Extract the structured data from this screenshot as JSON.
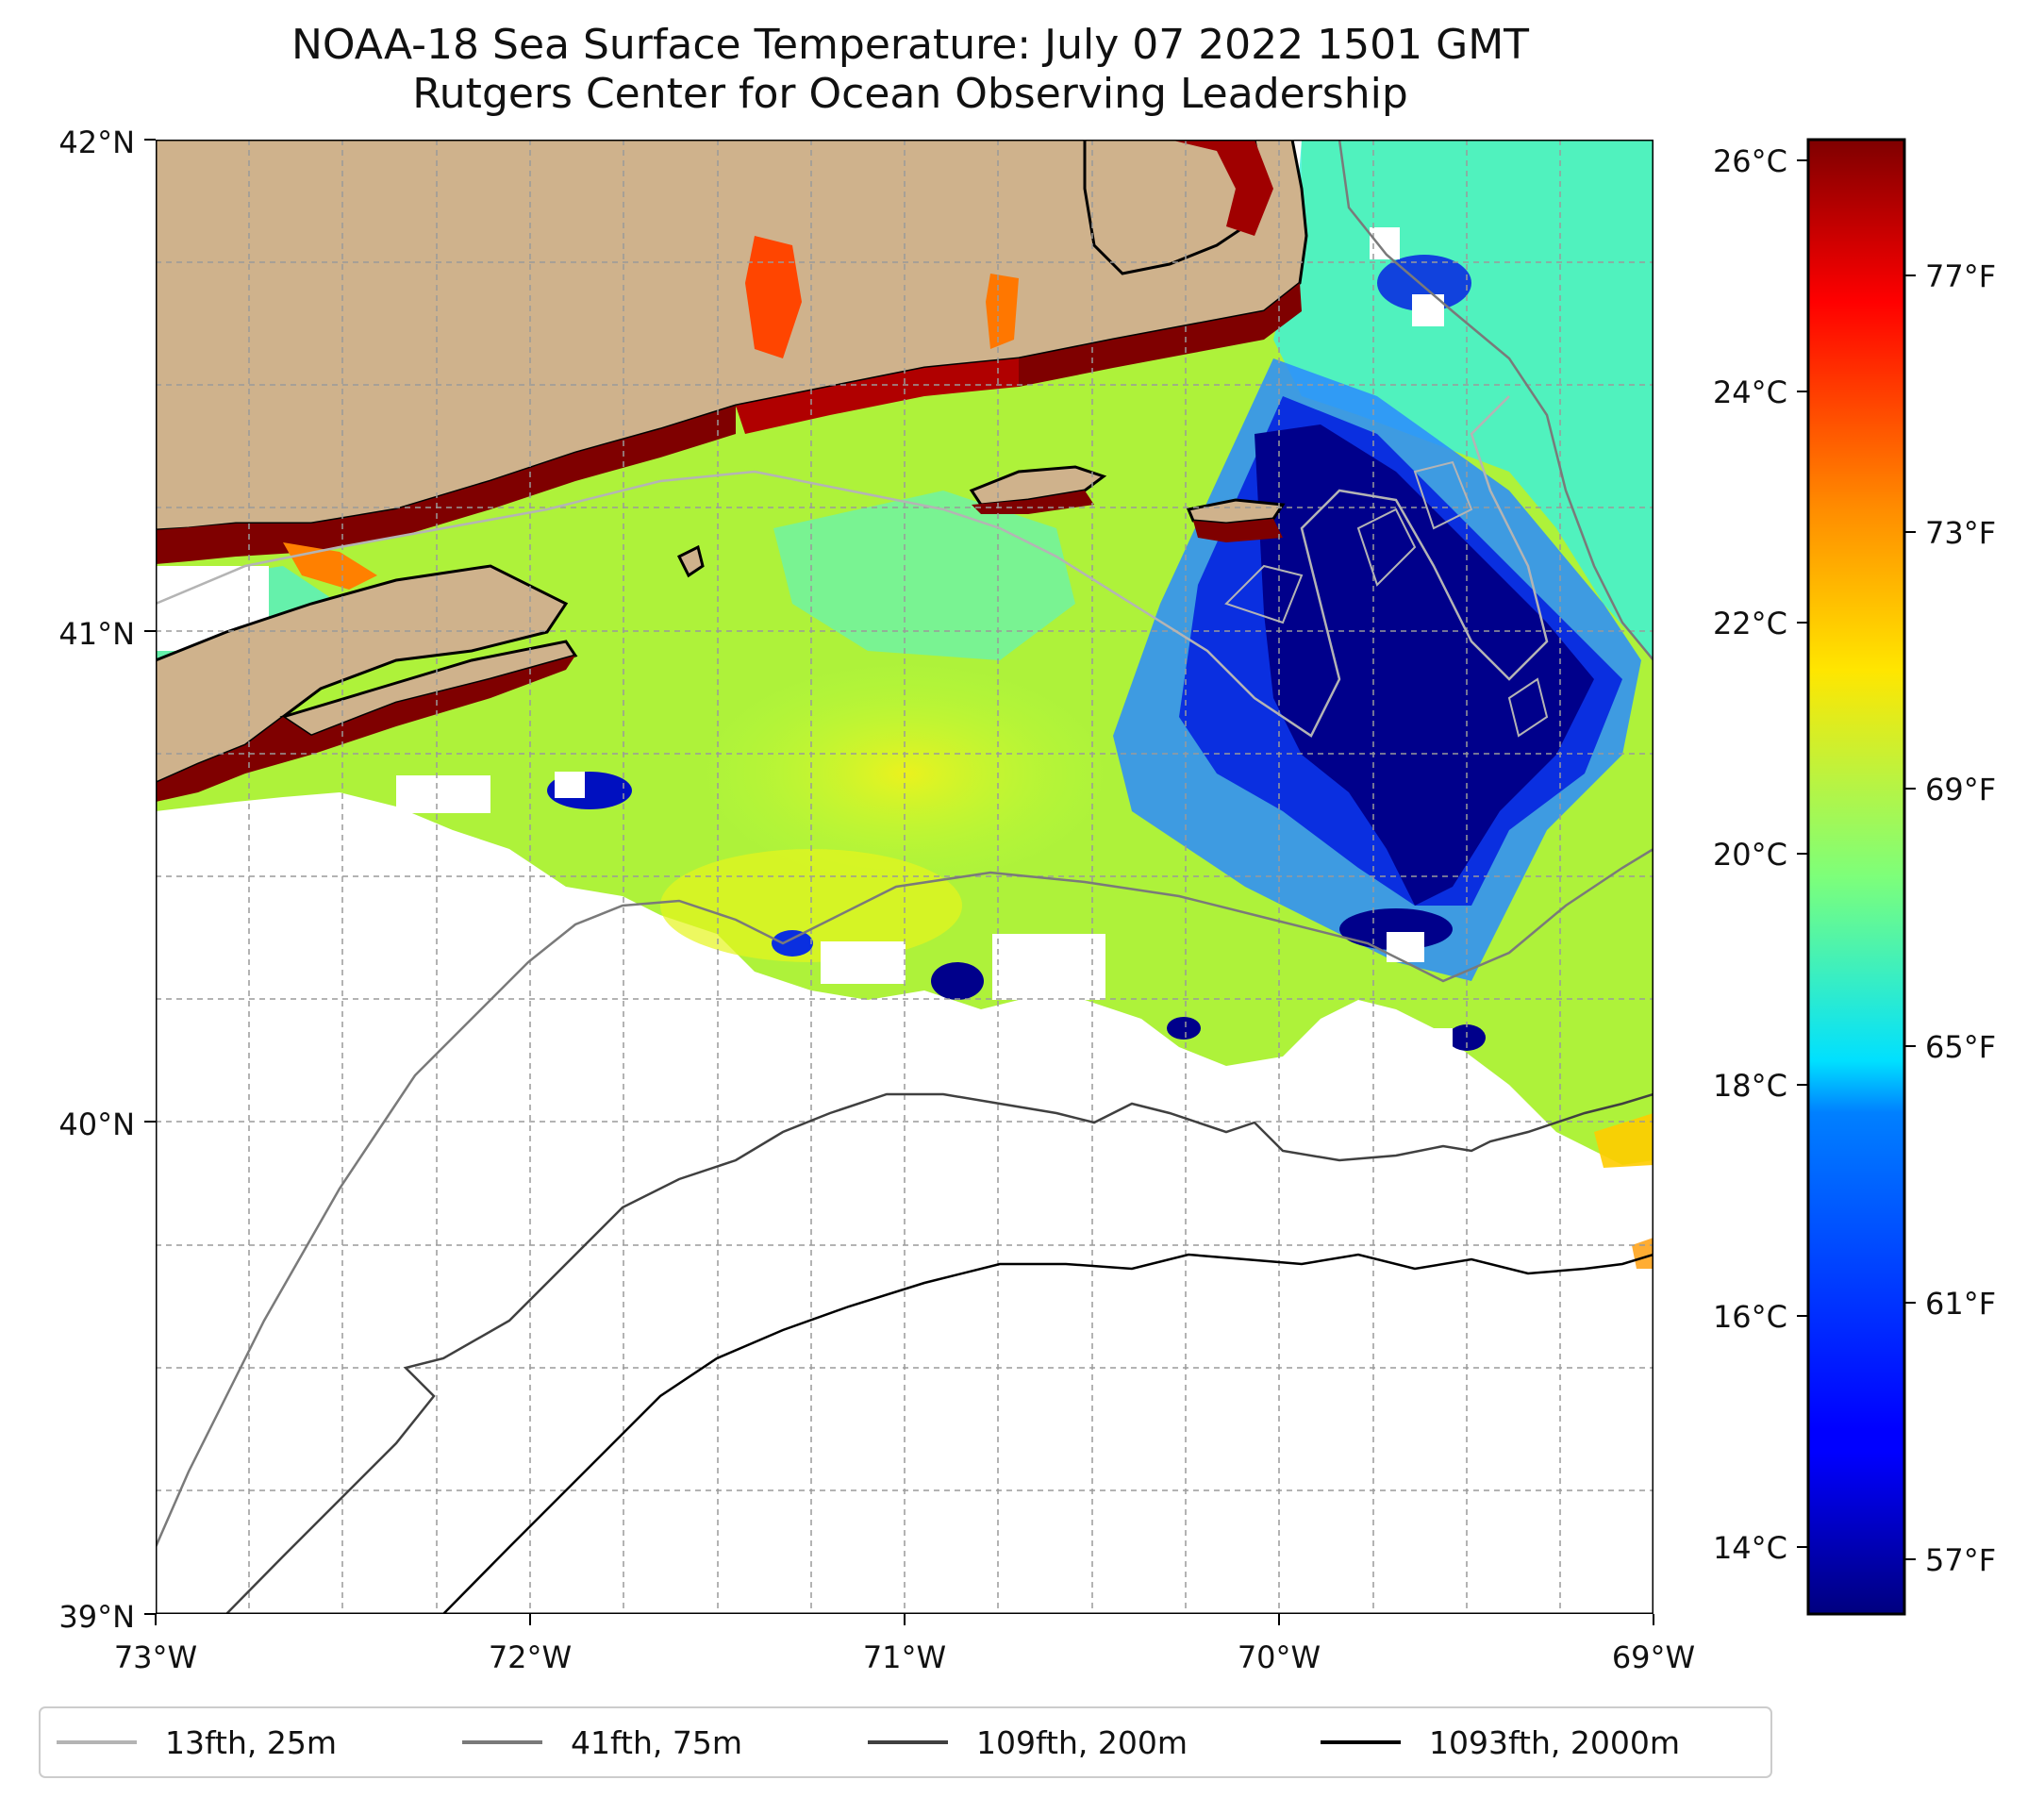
{
  "title": {
    "line1": "NOAA-18 Sea Surface Temperature: July 07 2022 1501 GMT",
    "line2": "Rutgers Center for Ocean Observing Leadership"
  },
  "axes": {
    "lat_ticks": [
      "42°N",
      "41°N",
      "40°N",
      "39°N"
    ],
    "lon_ticks": [
      "73°W",
      "72°W",
      "71°W",
      "70°W",
      "69°W"
    ]
  },
  "colorbar": {
    "celsius_ticks": [
      "26°C",
      "24°C",
      "22°C",
      "20°C",
      "18°C",
      "16°C",
      "14°C"
    ],
    "fahrenheit_ticks": [
      "77°F",
      "73°F",
      "69°F",
      "65°F",
      "61°F",
      "57°F"
    ]
  },
  "legend": {
    "items": [
      {
        "label": "13fth, 25m",
        "color": "#b4b4b4"
      },
      {
        "label": "41fth, 75m",
        "color": "#7a7a7a"
      },
      {
        "label": "109fth, 200m",
        "color": "#404040"
      },
      {
        "label": "1093fth, 2000m",
        "color": "#000000"
      }
    ]
  },
  "colors": {
    "land": "#cfb28c",
    "warm_coastal": "#7f0000",
    "cold_core": "#00008b"
  }
}
